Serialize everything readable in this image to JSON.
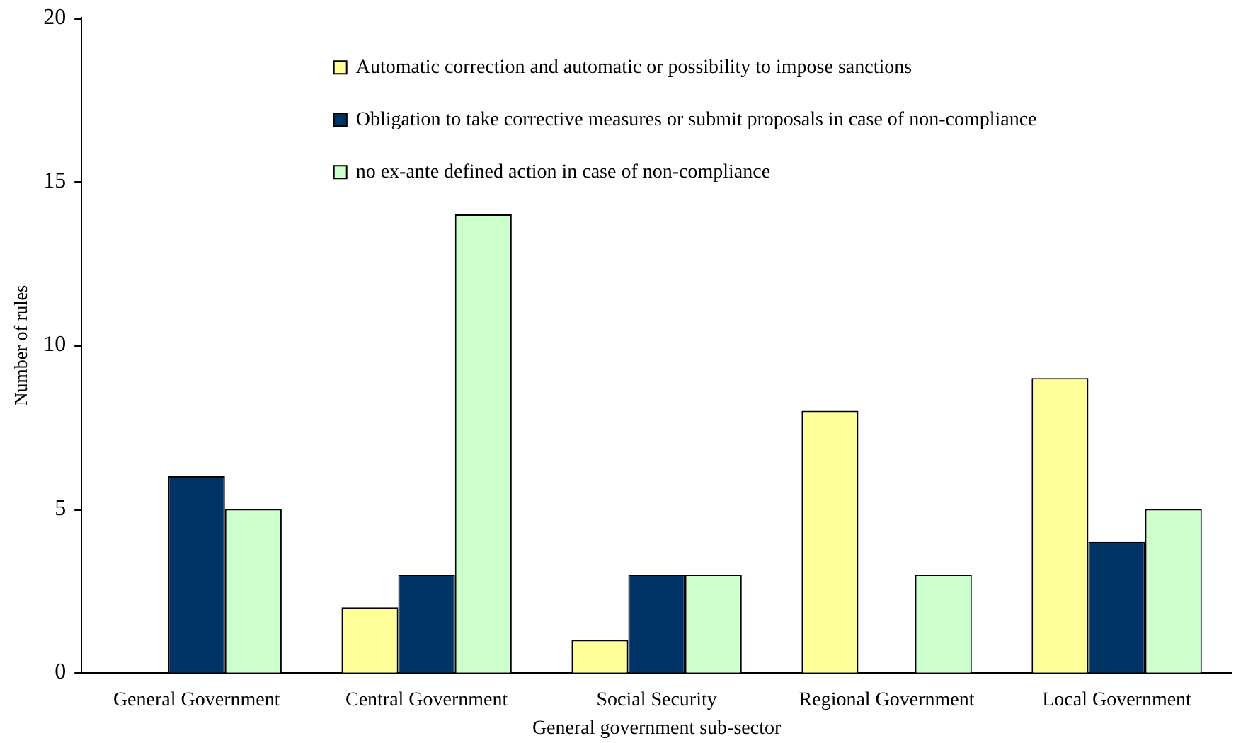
{
  "chart_data": {
    "type": "bar",
    "xlabel": "General government sub-sector",
    "ylabel": "Number of rules",
    "categories": [
      "General Government",
      "Central Government",
      "Social Security",
      "Regional Government",
      "Local Government"
    ],
    "series": [
      {
        "name": "Automatic correction and automatic or possibility to impose sanctions",
        "color": "#ffff99",
        "values": [
          0,
          2,
          1,
          8,
          9
        ]
      },
      {
        "name": "Obligation to take corrective measures or submit proposals in case of non-compliance",
        "color": "#003366",
        "values": [
          6,
          3,
          3,
          0,
          4
        ]
      },
      {
        "name": "no ex-ante defined action in case of non-compliance",
        "color": "#ccffcc",
        "values": [
          5,
          14,
          3,
          3,
          5
        ]
      }
    ],
    "ylim": [
      0,
      20
    ],
    "yticks": [
      0,
      5,
      10,
      15,
      20
    ],
    "grid": false,
    "legend": "top"
  }
}
